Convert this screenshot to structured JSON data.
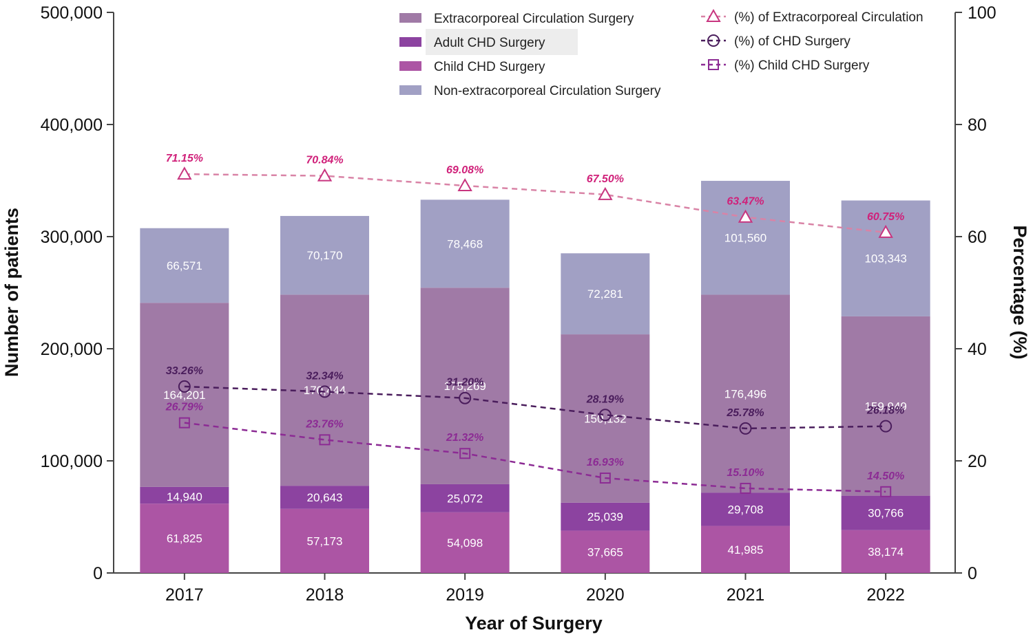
{
  "chart_data": {
    "type": "bar",
    "title": "",
    "xlabel": "Year of Surgery",
    "ylabel": "Number of patients",
    "y2label": "Percentage (%)",
    "ylim": [
      0,
      500000
    ],
    "y2lim": [
      0,
      100
    ],
    "y_ticks": [
      "0",
      "100,000",
      "200,000",
      "300,000",
      "400,000",
      "500,000"
    ],
    "y_tick_values": [
      0,
      100000,
      200000,
      300000,
      400000,
      500000
    ],
    "y2_ticks": [
      "0",
      "20",
      "40",
      "60",
      "80",
      "100"
    ],
    "y2_tick_values": [
      0,
      20,
      40,
      60,
      80,
      100
    ],
    "categories": [
      "2017",
      "2018",
      "2019",
      "2020",
      "2021",
      "2022"
    ],
    "series": [
      {
        "name": "Child CHD Surgery",
        "color": "#ac55a4",
        "values": [
          61825,
          57173,
          54098,
          37665,
          41985,
          38174
        ],
        "labels": [
          "61,825",
          "57,173",
          "54,098",
          "37,665",
          "41,985",
          "38,174"
        ]
      },
      {
        "name": "Adult CHD Surgery",
        "color": "#8c43a0",
        "values": [
          14940,
          20643,
          25072,
          25039,
          29708,
          30766
        ],
        "labels": [
          "14,940",
          "20,643",
          "25,072",
          "25,039",
          "29,708",
          "30,766"
        ]
      },
      {
        "name": "Extracorporeal Circulation Surgery",
        "color": "#a07aa6",
        "values": [
          164201,
          170444,
          175269,
          150132,
          176496,
          159949
        ],
        "labels": [
          "164,201",
          "170,444",
          "175,269",
          "150,132",
          "176,496",
          "159,949"
        ]
      },
      {
        "name": "Non-extracorporeal Circulation Surgery",
        "color": "#a1a0c4",
        "values": [
          66571,
          70170,
          78468,
          72281,
          101560,
          103343
        ],
        "labels": [
          "66,571",
          "70,170",
          "78,468",
          "72,281",
          "101,560",
          "103,343"
        ]
      }
    ],
    "line_series": [
      {
        "name": "(%) of Extracorporeal Circulation",
        "marker": "triangle",
        "color": "#d983a6",
        "label_color": "#d0217a",
        "values": [
          71.15,
          70.84,
          69.08,
          67.5,
          63.47,
          60.75
        ],
        "labels": [
          "71.15%",
          "70.84%",
          "69.08%",
          "67.50%",
          "63.47%",
          "60.75%"
        ]
      },
      {
        "name": "(%) of CHD Surgery",
        "marker": "circle",
        "color": "#4a1d5c",
        "label_color": "#4a1d5c",
        "values": [
          33.26,
          32.34,
          31.2,
          28.19,
          25.78,
          26.18
        ],
        "labels": [
          "33.26%",
          "32.34%",
          "31.20%",
          "28.19%",
          "25.78%",
          "26.18%"
        ]
      },
      {
        "name": "(%) Child CHD Surgery",
        "marker": "square",
        "color": "#8c2b94",
        "label_color": "#8c2b94",
        "values": [
          26.79,
          23.76,
          21.32,
          16.93,
          15.1,
          14.5
        ],
        "labels": [
          "26.79%",
          "23.76%",
          "21.32%",
          "16.93%",
          "15.10%",
          "14.50%"
        ]
      }
    ],
    "legend_bars": [
      "Extracorporeal Circulation Surgery",
      "Adult CHD Surgery",
      "Child CHD Surgery",
      "Non-extracorporeal Circulation Surgery"
    ],
    "legend_lines": [
      "(%) of Extracorporeal Circulation",
      "(%) of CHD Surgery",
      "(%) Child CHD Surgery"
    ]
  }
}
